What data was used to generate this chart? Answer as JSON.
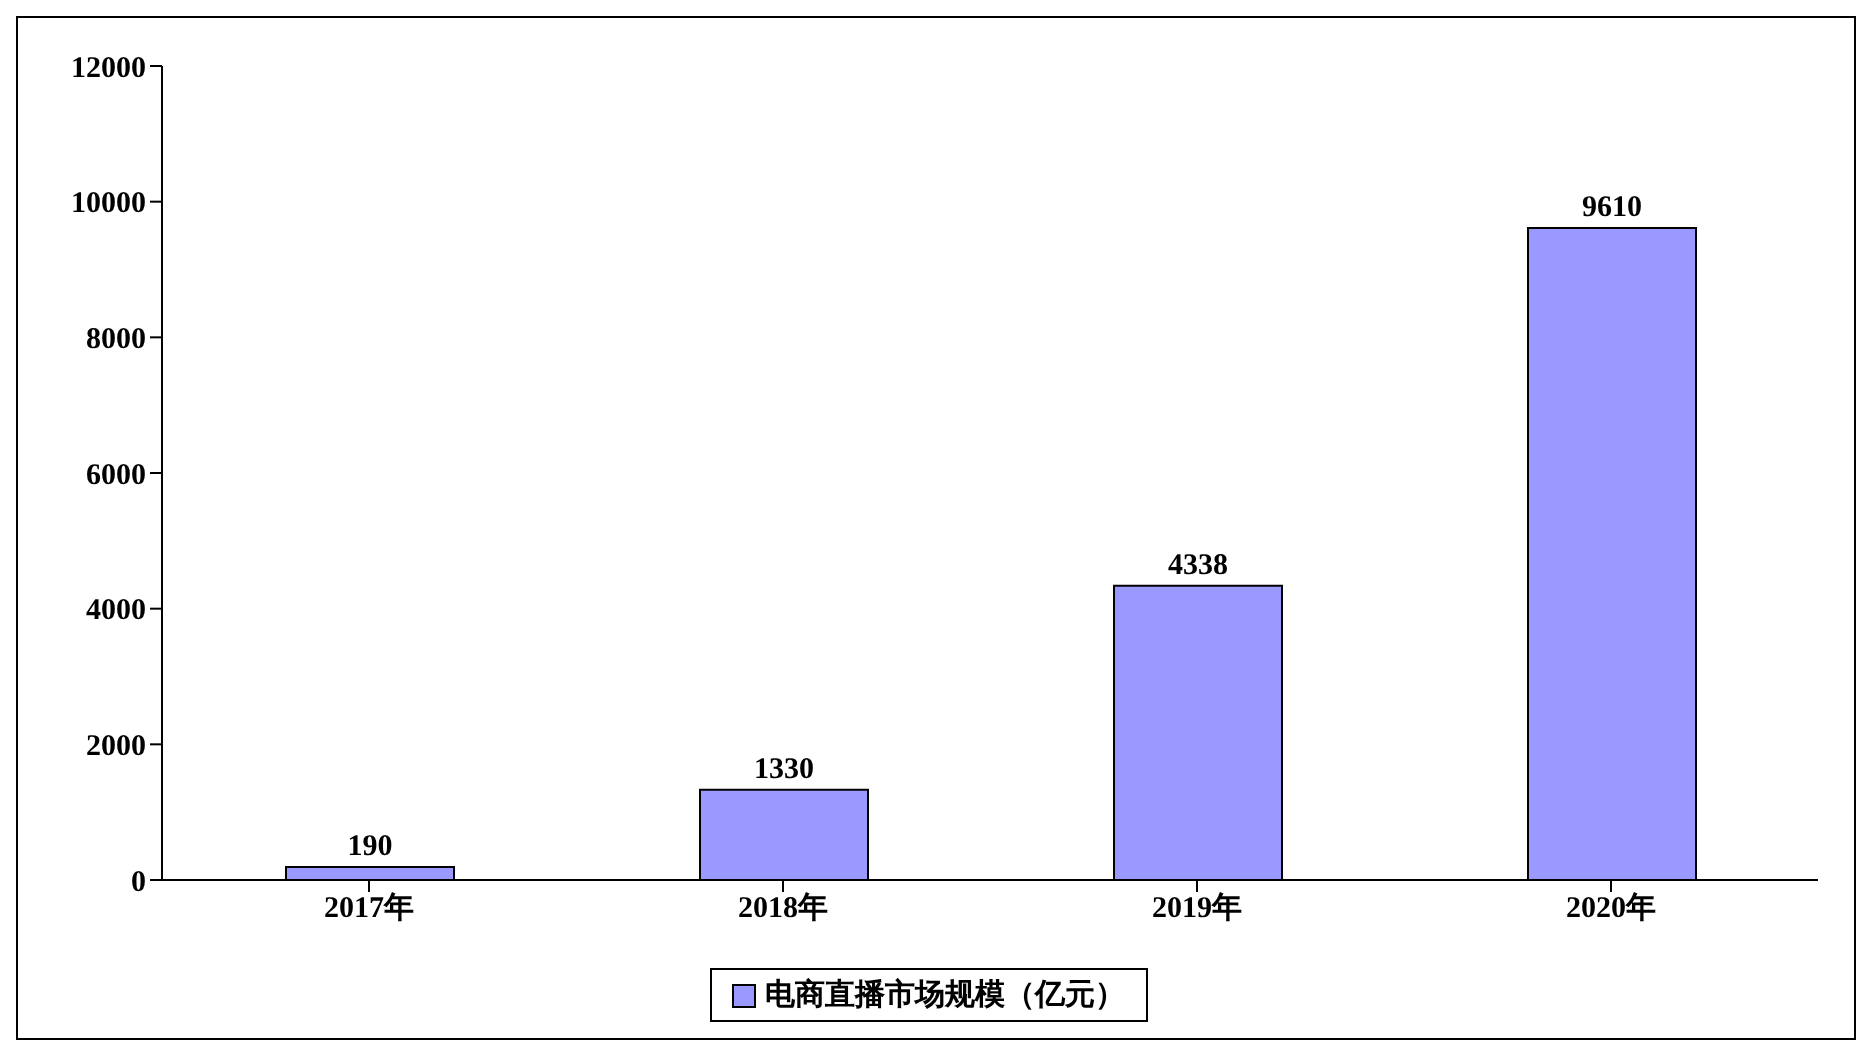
{
  "chart_data": {
    "type": "bar",
    "categories": [
      "2017年",
      "2018年",
      "2019年",
      "2020年"
    ],
    "series": [
      {
        "name": "电商直播市场规模（亿元）",
        "color": "#9999ff",
        "values": [
          190,
          1330,
          4338,
          9610
        ]
      }
    ],
    "ylim": [
      0,
      12000
    ],
    "yticks": [
      0,
      2000,
      4000,
      6000,
      8000,
      10000,
      12000
    ],
    "grid": false,
    "legend": "bottom",
    "data_labels": true
  }
}
